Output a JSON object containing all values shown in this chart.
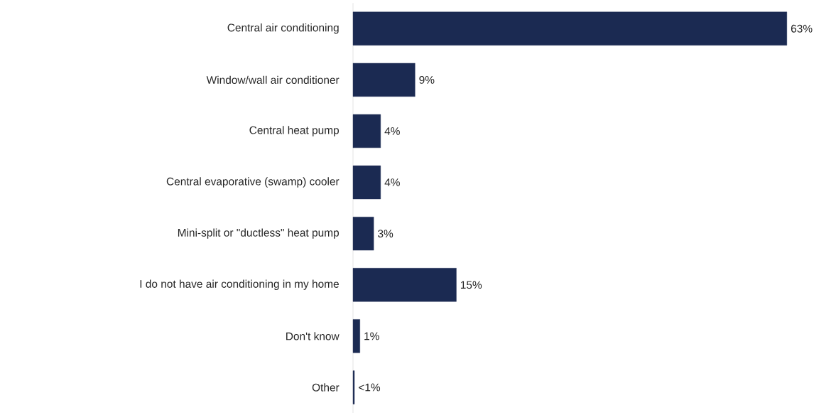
{
  "chart_data": {
    "type": "bar",
    "orientation": "horizontal",
    "categories": [
      "Central air conditioning",
      "Window/wall air conditioner",
      "Central heat pump",
      "Central evaporative (swamp) cooler",
      "Mini-split or \"ductless\" heat pump",
      "I do not have air conditioning in my home",
      "Don't know",
      "Other"
    ],
    "values": [
      63,
      9,
      4,
      4,
      3,
      15,
      1,
      0.2
    ],
    "value_labels": [
      "63%",
      "9%",
      "4%",
      "4%",
      "3%",
      "15%",
      "1%",
      "<1%"
    ],
    "color": "#1b2a52"
  }
}
